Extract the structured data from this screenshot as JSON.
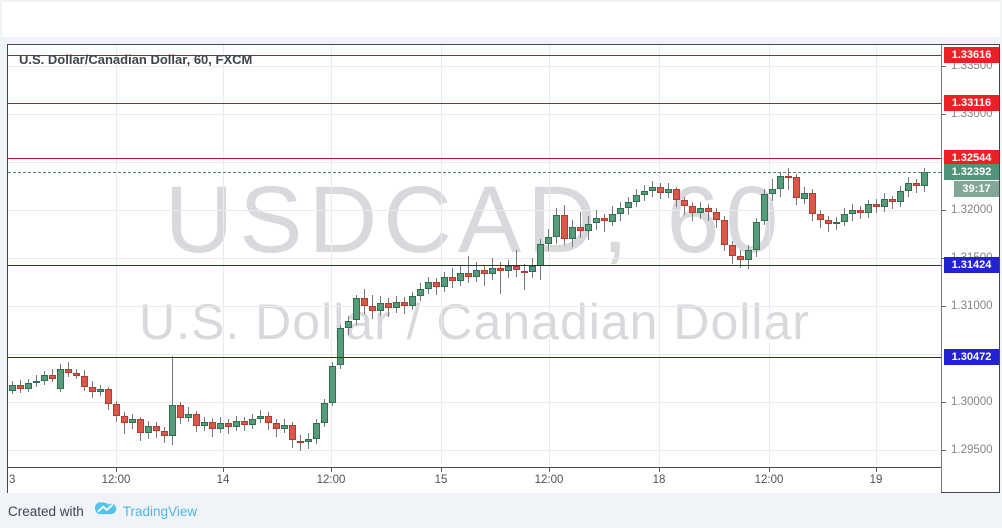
{
  "chart": {
    "title": "U.S. Dollar/Canadian Dollar, 60, FXCM",
    "watermark_line1": "USDCAD, 60",
    "watermark_line2": "U.S. Dollar / Canadian Dollar"
  },
  "footer": {
    "created_with": "Created with",
    "brand": "TradingView"
  },
  "colors": {
    "level_red_line": "#b01f28",
    "level_red_badge": "#ee2026",
    "level_blue_line": "#24248c",
    "level_blue_badge": "#2323d0",
    "current_line": "#3d8a71",
    "current_badge": "#4f9379",
    "countdown_badge": "#82a796",
    "candle_up_fill": "#569c79",
    "candle_up_border": "#2d6e50",
    "candle_down_fill": "#d8584a",
    "candle_down_border": "#b23b30",
    "brand_blue": "#4db7e5"
  },
  "price_axis": {
    "labels": [
      {
        "text": "1.33500",
        "price": 1.335
      },
      {
        "text": "1.33000",
        "price": 1.33
      },
      {
        "text": "1.32000",
        "price": 1.32
      },
      {
        "text": "1.31500",
        "price": 1.315
      },
      {
        "text": "1.31000",
        "price": 1.31
      },
      {
        "text": "1.30000",
        "price": 1.3
      },
      {
        "text": "1.29500",
        "price": 1.295
      }
    ],
    "gridline_prices": [
      1.335,
      1.33,
      1.325,
      1.32,
      1.315,
      1.31,
      1.305,
      1.3,
      1.295
    ]
  },
  "time_axis": {
    "labels": [
      {
        "text": "3",
        "x": 1,
        "grid": false
      },
      {
        "text": "12:00",
        "x": 108,
        "grid": true
      },
      {
        "text": "14",
        "x": 215,
        "grid": true
      },
      {
        "text": "12:00",
        "x": 323,
        "grid": true
      },
      {
        "text": "15",
        "x": 433,
        "grid": true
      },
      {
        "text": "12:00",
        "x": 541,
        "grid": true
      },
      {
        "text": "18",
        "x": 651,
        "grid": true
      },
      {
        "text": "12:00",
        "x": 761,
        "grid": true
      },
      {
        "text": "19",
        "x": 868,
        "grid": true
      }
    ]
  },
  "chart_data": {
    "type": "candlestick",
    "symbol": "USDCAD",
    "interval": "60",
    "provider": "FXCM",
    "title": "U.S. Dollar/Canadian Dollar, 60, FXCM",
    "grid": true,
    "ylim": [
      1.29334,
      1.33719
    ],
    "levels": [
      {
        "label": "1.33616",
        "price": 1.33616,
        "color": "red"
      },
      {
        "label": "1.33116",
        "price": 1.33116,
        "color": "red"
      },
      {
        "label": "1.32544",
        "price": 1.32544,
        "color": "red"
      },
      {
        "label": "1.31424",
        "price": 1.31424,
        "color": "blue"
      },
      {
        "label": "1.30472",
        "price": 1.30472,
        "color": "blue"
      }
    ],
    "current_price": {
      "label": "1.32392",
      "price": 1.32392,
      "countdown": "39:17"
    },
    "candles_ohlc": [
      [
        1.3012,
        1.3022,
        1.3008,
        1.3018
      ],
      [
        1.3018,
        1.3023,
        1.301,
        1.3014
      ],
      [
        1.3014,
        1.3024,
        1.3011,
        1.302
      ],
      [
        1.302,
        1.3028,
        1.3016,
        1.3022
      ],
      [
        1.3022,
        1.3032,
        1.3018,
        1.3028
      ],
      [
        1.3028,
        1.3034,
        1.3021,
        1.3024
      ],
      [
        1.3014,
        1.304,
        1.301,
        1.3035
      ],
      [
        1.3035,
        1.3042,
        1.3026,
        1.303
      ],
      [
        1.303,
        1.3034,
        1.3024,
        1.3027
      ],
      [
        1.3027,
        1.3033,
        1.3012,
        1.3016
      ],
      [
        1.3016,
        1.3022,
        1.3004,
        1.301
      ],
      [
        1.301,
        1.3018,
        1.3006,
        1.3014
      ],
      [
        1.3014,
        1.3016,
        1.2992,
        1.2998
      ],
      [
        1.2998,
        1.3001,
        1.2979,
        1.2986
      ],
      [
        1.2986,
        1.299,
        1.2967,
        1.2978
      ],
      [
        1.2978,
        1.2988,
        1.2972,
        1.2982
      ],
      [
        1.2982,
        1.2984,
        1.2959,
        1.2968
      ],
      [
        1.2968,
        1.298,
        1.2962,
        1.2975
      ],
      [
        1.2975,
        1.2979,
        1.2963,
        1.297
      ],
      [
        1.297,
        1.2974,
        1.2957,
        1.2965
      ],
      [
        1.2965,
        1.3048,
        1.2955,
        1.2997
      ],
      [
        1.2997,
        1.3,
        1.2977,
        1.2983
      ],
      [
        1.2983,
        1.2995,
        1.2979,
        1.2988
      ],
      [
        1.2988,
        1.2991,
        1.2969,
        1.2975
      ],
      [
        1.2975,
        1.2985,
        1.297,
        1.2979
      ],
      [
        1.2979,
        1.2983,
        1.2964,
        1.2972
      ],
      [
        1.2972,
        1.2984,
        1.2968,
        1.2978
      ],
      [
        1.2978,
        1.2982,
        1.2967,
        1.2974
      ],
      [
        1.2974,
        1.2986,
        1.297,
        1.298
      ],
      [
        1.298,
        1.2984,
        1.297,
        1.2976
      ],
      [
        1.2976,
        1.2988,
        1.2972,
        1.2982
      ],
      [
        1.2982,
        1.2992,
        1.2978,
        1.2986
      ],
      [
        1.2986,
        1.299,
        1.2971,
        1.2978
      ],
      [
        1.2978,
        1.2982,
        1.2964,
        1.2972
      ],
      [
        1.2972,
        1.2982,
        1.2968,
        1.2976
      ],
      [
        1.2976,
        1.2979,
        1.2952,
        1.296
      ],
      [
        1.296,
        1.2966,
        1.2949,
        1.2958
      ],
      [
        1.2958,
        1.2968,
        1.2951,
        1.2962
      ],
      [
        1.2962,
        1.2982,
        1.2956,
        1.2978
      ],
      [
        1.2978,
        1.3003,
        1.2974,
        1.2999
      ],
      [
        1.2999,
        1.3042,
        1.2996,
        1.3038
      ],
      [
        1.3038,
        1.308,
        1.3034,
        1.3077
      ],
      [
        1.3077,
        1.309,
        1.307,
        1.3085
      ],
      [
        1.3085,
        1.3112,
        1.308,
        1.3108
      ],
      [
        1.3108,
        1.3118,
        1.3092,
        1.31
      ],
      [
        1.31,
        1.3112,
        1.3087,
        1.3095
      ],
      [
        1.3095,
        1.311,
        1.309,
        1.3103
      ],
      [
        1.3103,
        1.3108,
        1.3089,
        1.3098
      ],
      [
        1.3098,
        1.311,
        1.3093,
        1.3104
      ],
      [
        1.3104,
        1.3109,
        1.3092,
        1.31
      ],
      [
        1.31,
        1.3115,
        1.3096,
        1.311
      ],
      [
        1.311,
        1.3124,
        1.3105,
        1.3118
      ],
      [
        1.3118,
        1.313,
        1.3112,
        1.3125
      ],
      [
        1.3125,
        1.3129,
        1.3111,
        1.312
      ],
      [
        1.312,
        1.3136,
        1.3115,
        1.313
      ],
      [
        1.313,
        1.314,
        1.3119,
        1.3126
      ],
      [
        1.3126,
        1.3142,
        1.3121,
        1.3134
      ],
      [
        1.3134,
        1.3152,
        1.3124,
        1.313
      ],
      [
        1.313,
        1.3146,
        1.3125,
        1.3138
      ],
      [
        1.3138,
        1.3143,
        1.3121,
        1.3133
      ],
      [
        1.3133,
        1.315,
        1.3127,
        1.314
      ],
      [
        1.314,
        1.3146,
        1.3113,
        1.3136
      ],
      [
        1.3136,
        1.3148,
        1.3129,
        1.3142
      ],
      [
        1.3142,
        1.3158,
        1.313,
        1.3137
      ],
      [
        1.3137,
        1.3144,
        1.3117,
        1.3135
      ],
      [
        1.3135,
        1.315,
        1.3129,
        1.3142
      ],
      [
        1.3142,
        1.317,
        1.3127,
        1.3165
      ],
      [
        1.3165,
        1.318,
        1.3157,
        1.3172
      ],
      [
        1.3172,
        1.3202,
        1.3165,
        1.3195
      ],
      [
        1.3195,
        1.3205,
        1.3163,
        1.317
      ],
      [
        1.317,
        1.319,
        1.3161,
        1.3182
      ],
      [
        1.3182,
        1.3198,
        1.3171,
        1.3178
      ],
      [
        1.3178,
        1.3194,
        1.3169,
        1.3186
      ],
      [
        1.3186,
        1.32,
        1.3179,
        1.3192
      ],
      [
        1.3192,
        1.3196,
        1.3177,
        1.3188
      ],
      [
        1.3188,
        1.3204,
        1.3183,
        1.3196
      ],
      [
        1.3196,
        1.3208,
        1.3189,
        1.3202
      ],
      [
        1.3202,
        1.3214,
        1.3195,
        1.3208
      ],
      [
        1.3208,
        1.3222,
        1.3203,
        1.3216
      ],
      [
        1.3216,
        1.3226,
        1.3209,
        1.322
      ],
      [
        1.322,
        1.323,
        1.3213,
        1.3224
      ],
      [
        1.3224,
        1.3228,
        1.3211,
        1.3218
      ],
      [
        1.3218,
        1.3228,
        1.3213,
        1.3222
      ],
      [
        1.3222,
        1.3224,
        1.3203,
        1.321
      ],
      [
        1.321,
        1.3214,
        1.3195,
        1.3204
      ],
      [
        1.3204,
        1.3208,
        1.3189,
        1.3197
      ],
      [
        1.3197,
        1.3208,
        1.3191,
        1.3202
      ],
      [
        1.3202,
        1.3206,
        1.3189,
        1.3198
      ],
      [
        1.3198,
        1.3202,
        1.3181,
        1.319
      ],
      [
        1.319,
        1.3194,
        1.3157,
        1.3164
      ],
      [
        1.3164,
        1.3168,
        1.3144,
        1.3152
      ],
      [
        1.3152,
        1.3158,
        1.314,
        1.3148
      ],
      [
        1.3148,
        1.3164,
        1.3139,
        1.3158
      ],
      [
        1.3158,
        1.3192,
        1.3151,
        1.3188
      ],
      [
        1.3188,
        1.3222,
        1.3184,
        1.3217
      ],
      [
        1.3217,
        1.3232,
        1.3209,
        1.3222
      ],
      [
        1.3222,
        1.324,
        1.3213,
        1.3236
      ],
      [
        1.3236,
        1.3244,
        1.3221,
        1.3234
      ],
      [
        1.3234,
        1.3238,
        1.3205,
        1.3212
      ],
      [
        1.3212,
        1.3224,
        1.3206,
        1.3218
      ],
      [
        1.3218,
        1.3222,
        1.3189,
        1.3196
      ],
      [
        1.3196,
        1.32,
        1.3181,
        1.319
      ],
      [
        1.319,
        1.3194,
        1.3177,
        1.3185
      ],
      [
        1.3185,
        1.3193,
        1.3179,
        1.3188
      ],
      [
        1.3188,
        1.3202,
        1.3183,
        1.3196
      ],
      [
        1.3196,
        1.3206,
        1.3189,
        1.32
      ],
      [
        1.32,
        1.3204,
        1.3191,
        1.3197
      ],
      [
        1.3197,
        1.321,
        1.3192,
        1.3206
      ],
      [
        1.3206,
        1.3212,
        1.3197,
        1.3203
      ],
      [
        1.3203,
        1.3218,
        1.3198,
        1.3212
      ],
      [
        1.3212,
        1.3215,
        1.3201,
        1.3208
      ],
      [
        1.3208,
        1.3225,
        1.3203,
        1.322
      ],
      [
        1.322,
        1.3234,
        1.3214,
        1.3228
      ],
      [
        1.3228,
        1.3232,
        1.3218,
        1.3225
      ],
      [
        1.3225,
        1.3244,
        1.3219,
        1.32392
      ]
    ]
  }
}
